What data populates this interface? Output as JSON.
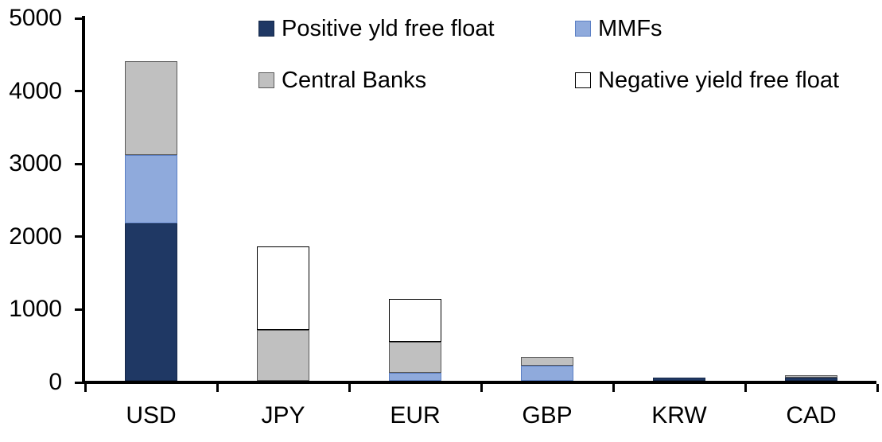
{
  "chart_data": {
    "type": "bar",
    "stacked": true,
    "title": "",
    "xlabel": "",
    "ylabel": "",
    "categories": [
      "USD",
      "JPY",
      "EUR",
      "GBP",
      "KRW",
      "CAD"
    ],
    "series": [
      {
        "name": "Positive yld free float",
        "color": "#1f3864",
        "border_color": "#17294a",
        "values": [
          2160,
          0,
          0,
          0,
          45,
          45
        ]
      },
      {
        "name": "MMFs",
        "color": "#8faadc",
        "border_color": "#5b7fc4",
        "values": [
          940,
          0,
          110,
          210,
          0,
          0
        ]
      },
      {
        "name": "Central Banks",
        "color": "#c0c0c0",
        "border_color": "#595959",
        "values": [
          1290,
          700,
          430,
          120,
          0,
          30
        ]
      },
      {
        "name": "Negative yield free float",
        "color": "#ffffff",
        "border_color": "#000000",
        "values": [
          0,
          1150,
          580,
          0,
          0,
          0
        ]
      }
    ],
    "totals": {
      "USD": 4390,
      "JPY": 1850,
      "EUR": 1120,
      "GBP": 330,
      "KRW": 45,
      "CAD": 75
    },
    "ylim": [
      0,
      5000
    ],
    "yticks": [
      0,
      1000,
      2000,
      3000,
      4000,
      5000
    ],
    "grid": false,
    "legend_position": "top",
    "axis_color": "#000000",
    "text_color": "#000000",
    "background_color": "#ffffff"
  }
}
